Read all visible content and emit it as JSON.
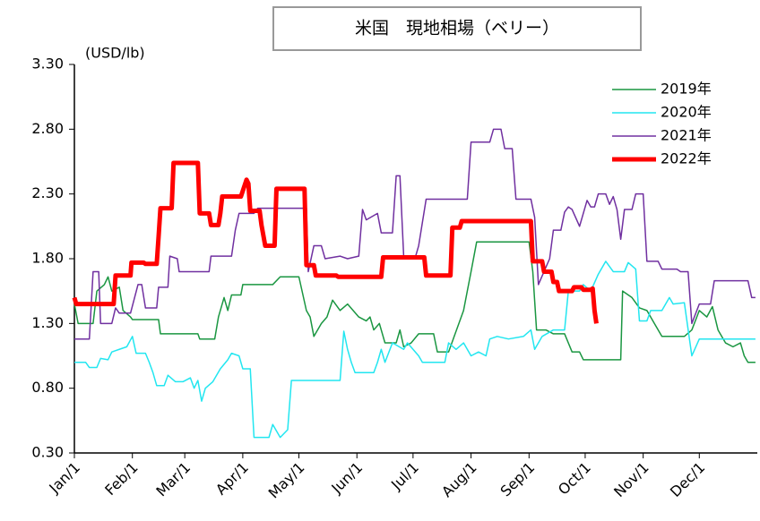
{
  "chart_data": {
    "type": "line",
    "title": "米国　現地相場（ベリー）",
    "y_unit": "(USD/lb)",
    "xlim": [
      0,
      365
    ],
    "xticks": [
      {
        "value": 0,
        "label": "Jan/1"
      },
      {
        "value": 31,
        "label": "Feb/1"
      },
      {
        "value": 59,
        "label": "Mar/1"
      },
      {
        "value": 90,
        "label": "Apr/1"
      },
      {
        "value": 120,
        "label": "May/1"
      },
      {
        "value": 151,
        "label": "Jun/1"
      },
      {
        "value": 181,
        "label": "Jul/1"
      },
      {
        "value": 212,
        "label": "Aug/1"
      },
      {
        "value": 243,
        "label": "Sep/1"
      },
      {
        "value": 273,
        "label": "Oct/1"
      },
      {
        "value": 304,
        "label": "Nov/1"
      },
      {
        "value": 334,
        "label": "Dec/1"
      }
    ],
    "ylim": [
      0.3,
      3.3
    ],
    "yticks": [
      {
        "value": 0.3,
        "label": "0.30"
      },
      {
        "value": 0.8,
        "label": "0.80"
      },
      {
        "value": 1.3,
        "label": "1.30"
      },
      {
        "value": 1.8,
        "label": "1.80"
      },
      {
        "value": 2.3,
        "label": "2.30"
      },
      {
        "value": 2.8,
        "label": "2.80"
      },
      {
        "value": 3.3,
        "label": "3.30"
      }
    ],
    "grid": false,
    "legend": "top-right",
    "series": [
      {
        "name": "2019年",
        "color": "#1a9641",
        "width": 1.5,
        "x": [
          0,
          2,
          10,
          12,
          16,
          18,
          20,
          24,
          26,
          30,
          31,
          45,
          46,
          66,
          67,
          75,
          77,
          80,
          82,
          84,
          89,
          90,
          106,
          110,
          120,
          124,
          126,
          128,
          132,
          135,
          138,
          142,
          146,
          152,
          156,
          158,
          160,
          163,
          166,
          172,
          174,
          176,
          180,
          184,
          192,
          194,
          200,
          203,
          208,
          210,
          212,
          215,
          243,
          245,
          247,
          252,
          256,
          262,
          266,
          270,
          272,
          292,
          293,
          298,
          302,
          306,
          310,
          314,
          326,
          330,
          334,
          338,
          341,
          344,
          348,
          352,
          356,
          358,
          360,
          364
        ],
        "values": [
          1.45,
          1.3,
          1.3,
          1.55,
          1.6,
          1.66,
          1.55,
          1.58,
          1.4,
          1.35,
          1.33,
          1.33,
          1.22,
          1.22,
          1.18,
          1.18,
          1.35,
          1.5,
          1.4,
          1.52,
          1.52,
          1.6,
          1.6,
          1.66,
          1.66,
          1.4,
          1.35,
          1.2,
          1.3,
          1.35,
          1.48,
          1.4,
          1.45,
          1.35,
          1.32,
          1.35,
          1.25,
          1.3,
          1.15,
          1.15,
          1.25,
          1.12,
          1.15,
          1.22,
          1.22,
          1.08,
          1.08,
          1.2,
          1.4,
          1.55,
          1.7,
          1.93,
          1.93,
          1.7,
          1.25,
          1.25,
          1.22,
          1.22,
          1.08,
          1.08,
          1.02,
          1.02,
          1.55,
          1.5,
          1.42,
          1.4,
          1.3,
          1.2,
          1.2,
          1.25,
          1.4,
          1.35,
          1.43,
          1.25,
          1.15,
          1.12,
          1.15,
          1.05,
          1.0,
          1.0
        ]
      },
      {
        "name": "2020年",
        "color": "#22e6f0",
        "width": 1.5,
        "x": [
          0,
          6,
          8,
          12,
          14,
          18,
          20,
          24,
          28,
          31,
          33,
          38,
          40,
          42,
          44,
          48,
          50,
          54,
          58,
          62,
          64,
          66,
          68,
          70,
          74,
          78,
          82,
          84,
          88,
          90,
          94,
          96,
          104,
          106,
          110,
          114,
          116,
          142,
          144,
          146,
          148,
          150,
          160,
          162,
          164,
          166,
          170,
          176,
          178,
          184,
          186,
          198,
          200,
          204,
          208,
          212,
          216,
          220,
          222,
          226,
          232,
          240,
          244,
          246,
          250,
          256,
          262,
          264,
          270,
          272,
          276,
          280,
          284,
          288,
          294,
          296,
          300,
          302,
          306,
          308,
          314,
          318,
          320,
          326,
          330,
          334,
          364
        ],
        "values": [
          1.0,
          1.0,
          0.96,
          0.96,
          1.03,
          1.02,
          1.08,
          1.1,
          1.12,
          1.2,
          1.07,
          1.07,
          1.0,
          0.92,
          0.82,
          0.82,
          0.9,
          0.85,
          0.85,
          0.88,
          0.8,
          0.86,
          0.7,
          0.8,
          0.85,
          0.95,
          1.02,
          1.07,
          1.05,
          0.95,
          0.95,
          0.42,
          0.42,
          0.52,
          0.42,
          0.48,
          0.86,
          0.86,
          1.24,
          1.1,
          1.0,
          0.92,
          0.92,
          1.0,
          1.1,
          1.0,
          1.15,
          1.1,
          1.15,
          1.05,
          1.0,
          1.0,
          1.15,
          1.1,
          1.15,
          1.05,
          1.08,
          1.05,
          1.18,
          1.2,
          1.18,
          1.2,
          1.25,
          1.1,
          1.2,
          1.25,
          1.25,
          1.55,
          1.55,
          1.6,
          1.55,
          1.68,
          1.78,
          1.7,
          1.7,
          1.77,
          1.72,
          1.32,
          1.32,
          1.4,
          1.4,
          1.5,
          1.45,
          1.46,
          1.05,
          1.18,
          1.18
        ]
      },
      {
        "name": "2021年",
        "color": "#7030a0",
        "width": 1.5,
        "x": [
          0,
          8,
          10,
          13,
          14,
          20,
          22,
          24,
          30,
          34,
          36,
          38,
          44,
          45,
          50,
          51,
          55,
          56,
          72,
          73,
          84,
          86,
          88,
          96,
          98,
          124,
          125,
          128,
          132,
          134,
          142,
          146,
          152,
          154,
          156,
          162,
          164,
          170,
          172,
          174,
          176,
          178,
          182,
          184,
          188,
          210,
          212,
          222,
          224,
          228,
          230,
          234,
          236,
          244,
          246,
          248,
          254,
          256,
          260,
          262,
          264,
          266,
          270,
          274,
          276,
          278,
          280,
          284,
          286,
          288,
          290,
          292,
          294,
          298,
          300,
          304,
          306,
          312,
          314,
          322,
          324,
          328,
          330,
          334,
          340,
          342,
          360,
          362,
          364
        ],
        "values": [
          1.18,
          1.18,
          1.7,
          1.7,
          1.3,
          1.3,
          1.42,
          1.38,
          1.38,
          1.6,
          1.6,
          1.42,
          1.42,
          1.58,
          1.58,
          1.82,
          1.8,
          1.7,
          1.7,
          1.82,
          1.82,
          2.02,
          2.15,
          2.15,
          2.19,
          2.19,
          1.7,
          1.9,
          1.9,
          1.8,
          1.82,
          1.8,
          1.82,
          2.18,
          2.1,
          2.15,
          2.0,
          2.0,
          2.44,
          2.44,
          1.82,
          1.8,
          1.8,
          1.9,
          2.26,
          2.26,
          2.7,
          2.7,
          2.8,
          2.8,
          2.65,
          2.65,
          2.26,
          2.26,
          2.12,
          1.6,
          1.8,
          2.02,
          2.02,
          2.16,
          2.2,
          2.18,
          2.05,
          2.25,
          2.2,
          2.2,
          2.3,
          2.3,
          2.22,
          2.28,
          2.18,
          1.95,
          2.18,
          2.18,
          2.3,
          2.3,
          1.78,
          1.78,
          1.72,
          1.72,
          1.7,
          1.7,
          1.3,
          1.45,
          1.45,
          1.63,
          1.63,
          1.5,
          1.5
        ]
      },
      {
        "name": "2022年",
        "color": "#ff0000",
        "width": 5,
        "x": [
          0,
          1,
          21,
          22,
          30,
          30.5,
          37,
          38,
          44,
          45,
          46,
          52,
          53,
          66,
          67,
          72,
          73,
          77,
          78,
          79,
          89,
          92,
          93,
          94,
          99,
          100,
          102,
          107,
          108,
          123,
          124,
          128,
          129,
          140,
          141,
          164,
          165,
          187,
          188,
          201,
          202,
          206,
          207,
          244,
          245,
          250,
          251,
          255,
          256,
          258,
          259,
          266,
          267,
          271,
          272,
          276,
          277,
          278,
          279
        ],
        "values": [
          1.5,
          1.45,
          1.45,
          1.67,
          1.67,
          1.77,
          1.77,
          1.76,
          1.76,
          1.97,
          2.19,
          2.19,
          2.54,
          2.54,
          2.15,
          2.15,
          2.06,
          2.06,
          2.15,
          2.28,
          2.28,
          2.41,
          2.38,
          2.17,
          2.17,
          2.06,
          1.9,
          1.9,
          2.34,
          2.34,
          1.75,
          1.75,
          1.67,
          1.67,
          1.66,
          1.66,
          1.81,
          1.81,
          1.67,
          1.67,
          2.04,
          2.04,
          2.09,
          2.09,
          1.78,
          1.78,
          1.7,
          1.7,
          1.62,
          1.62,
          1.55,
          1.55,
          1.58,
          1.58,
          1.56,
          1.56,
          1.57,
          1.4,
          1.3
        ]
      }
    ]
  }
}
